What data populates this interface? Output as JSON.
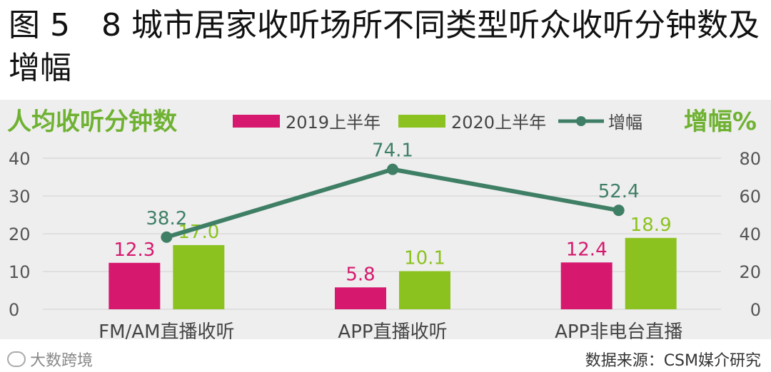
{
  "title": "图 5　8 城市居家收听场所不同类型听众收听分钟数及增幅",
  "footer": {
    "watermark": "大数跨境",
    "source": "数据来源：CSM媒介研究"
  },
  "colors": {
    "series2019": "#d6186e",
    "series2020": "#8cc21f",
    "line": "#3f7f66",
    "axisLabel": "#6fb232"
  },
  "chart_data": {
    "type": "bar",
    "left_axis_title": "人均收听分钟数",
    "right_axis_title": "增幅%",
    "categories": [
      "FM/AM直播收听",
      "APP直播收听",
      "APP非电台直播"
    ],
    "series": [
      {
        "name": "2019上半年",
        "type": "bar",
        "axis": "left",
        "values": [
          12.3,
          5.8,
          12.4
        ],
        "labels": [
          "12.3",
          "5.8",
          "12.4"
        ]
      },
      {
        "name": "2020上半年",
        "type": "bar",
        "axis": "left",
        "values": [
          17.0,
          10.1,
          18.9
        ],
        "labels": [
          "17.0",
          "10.1",
          "18.9"
        ]
      },
      {
        "name": "增幅",
        "type": "line",
        "axis": "right",
        "values": [
          38.2,
          74.1,
          52.4
        ],
        "labels": [
          "38.2",
          "74.1",
          "52.4"
        ]
      }
    ],
    "left_ylim": [
      0,
      40
    ],
    "left_ticks": [
      "0",
      "10",
      "20",
      "30",
      "40"
    ],
    "right_ylim": [
      0,
      80
    ],
    "right_ticks": [
      "0",
      "20",
      "40",
      "60",
      "80"
    ],
    "grid": true,
    "legend_position": "top"
  }
}
